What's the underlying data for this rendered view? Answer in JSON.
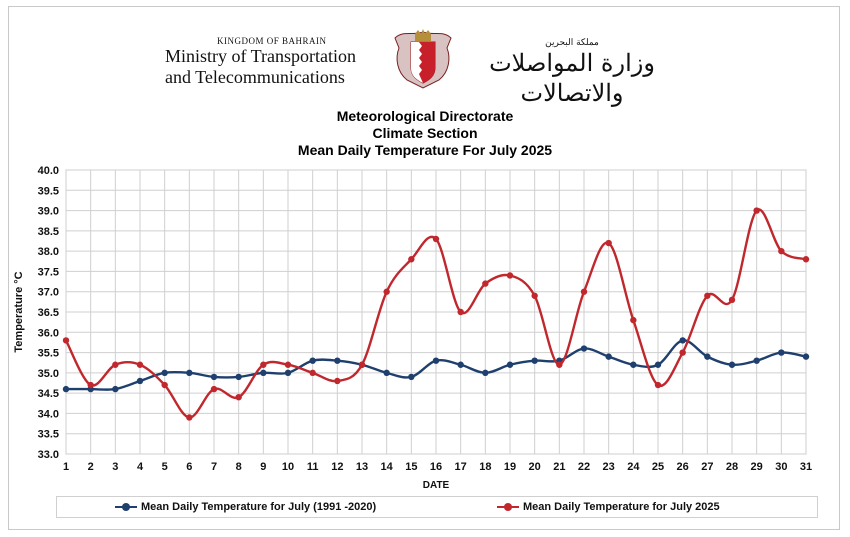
{
  "header": {
    "kingdom": "KINGDOM OF BAHRAIN",
    "ministry_line1": "Ministry of Transportation",
    "ministry_line2": "and Telecommunications",
    "arabic_small": "مملكة البحرين",
    "arabic_ministry": "وزارة المواصلات والاتصالات",
    "emblem": "bahrain-emblem"
  },
  "chart_data": {
    "type": "line",
    "title_lines": [
      "Meteorological Directorate",
      "Climate Section",
      "Mean Daily Temperature For July 2025"
    ],
    "xlabel": "DATE",
    "ylabel": "Temperature °C",
    "x": [
      1,
      2,
      3,
      4,
      5,
      6,
      7,
      8,
      9,
      10,
      11,
      12,
      13,
      14,
      15,
      16,
      17,
      18,
      19,
      20,
      21,
      22,
      23,
      24,
      25,
      26,
      27,
      28,
      29,
      30,
      31
    ],
    "ylim": [
      33.0,
      40.0
    ],
    "ytick_step": 0.5,
    "grid": true,
    "legend_position": "bottom",
    "series": [
      {
        "name": "Mean Daily Temperature for July (1991 -2020)",
        "color": "#1f3f6e",
        "values": [
          34.6,
          34.6,
          34.6,
          34.8,
          35.0,
          35.0,
          34.9,
          34.9,
          35.0,
          35.0,
          35.3,
          35.3,
          35.2,
          35.0,
          34.9,
          35.3,
          35.2,
          35.0,
          35.2,
          35.3,
          35.3,
          35.6,
          35.4,
          35.2,
          35.2,
          35.8,
          35.4,
          35.2,
          35.3,
          35.5,
          35.4
        ]
      },
      {
        "name": "Mean Daily Temperature for July 2025",
        "color": "#c0282d",
        "values": [
          35.8,
          34.7,
          35.2,
          35.2,
          34.7,
          33.9,
          34.6,
          34.4,
          35.2,
          35.2,
          35.0,
          34.8,
          35.2,
          37.0,
          37.8,
          38.3,
          36.5,
          37.2,
          37.4,
          36.9,
          35.2,
          37.0,
          38.2,
          36.3,
          34.7,
          35.5,
          36.9,
          36.8,
          39.0,
          38.0,
          37.8
        ]
      }
    ]
  }
}
